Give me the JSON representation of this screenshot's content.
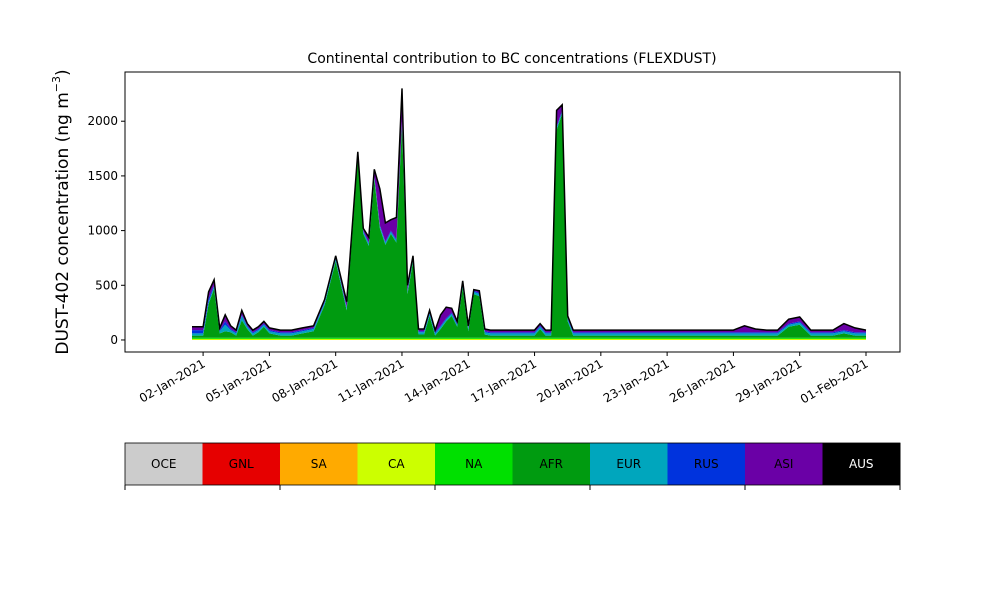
{
  "chart_data": {
    "type": "area",
    "title": "Continental contribution to BC concentrations (FLEXDUST)",
    "ylabel_main": "DUST-402 concentration (ng m",
    "ylabel_sup": "−3",
    "ylabel_close": ")",
    "xlabel": "",
    "x_range": [
      "2021-01-01",
      "2021-02-01"
    ],
    "ylim": [
      -110,
      2450
    ],
    "y_ticks": [
      0,
      500,
      1000,
      1500,
      2000
    ],
    "x_ticks": [
      {
        "date": "2021-01-02",
        "label": "02-Jan-2021"
      },
      {
        "date": "2021-01-05",
        "label": "05-Jan-2021"
      },
      {
        "date": "2021-01-08",
        "label": "08-Jan-2021"
      },
      {
        "date": "2021-01-11",
        "label": "11-Jan-2021"
      },
      {
        "date": "2021-01-14",
        "label": "14-Jan-2021"
      },
      {
        "date": "2021-01-17",
        "label": "17-Jan-2021"
      },
      {
        "date": "2021-01-20",
        "label": "20-Jan-2021"
      },
      {
        "date": "2021-01-23",
        "label": "23-Jan-2021"
      },
      {
        "date": "2021-01-26",
        "label": "26-Jan-2021"
      },
      {
        "date": "2021-01-29",
        "label": "29-Jan-2021"
      },
      {
        "date": "2021-02-01",
        "label": "01-Feb-2021"
      }
    ],
    "stack_order": [
      "OCE",
      "GNL",
      "SA",
      "CA",
      "NA",
      "AFR",
      "EUR",
      "RUS",
      "ASI",
      "AUS"
    ],
    "colors": {
      "OCE": "#cccccc",
      "GNL": "#e60000",
      "SA": "#ffaa00",
      "CA": "#ccff00",
      "NA": "#00e000",
      "AFR": "#009b10",
      "EUR": "#00a6bd",
      "RUS": "#0033dd",
      "ASI": "#6a00a6",
      "AUS": "#000000"
    },
    "x": [
      "2021-01-01 12:00",
      "2021-01-02 00:00",
      "2021-01-02 06:00",
      "2021-01-02 12:00",
      "2021-01-02 18:00",
      "2021-01-03 00:00",
      "2021-01-03 06:00",
      "2021-01-03 12:00",
      "2021-01-03 18:00",
      "2021-01-04 00:00",
      "2021-01-04 06:00",
      "2021-01-04 12:00",
      "2021-01-04 18:00",
      "2021-01-05 00:00",
      "2021-01-05 12:00",
      "2021-01-06 00:00",
      "2021-01-06 12:00",
      "2021-01-07 00:00",
      "2021-01-07 12:00",
      "2021-01-08 00:00",
      "2021-01-08 12:00",
      "2021-01-09 00:00",
      "2021-01-09 06:00",
      "2021-01-09 12:00",
      "2021-01-09 18:00",
      "2021-01-10 00:00",
      "2021-01-10 06:00",
      "2021-01-10 12:00",
      "2021-01-10 18:00",
      "2021-01-11 00:00",
      "2021-01-11 06:00",
      "2021-01-11 12:00",
      "2021-01-11 18:00",
      "2021-01-12 00:00",
      "2021-01-12 06:00",
      "2021-01-12 12:00",
      "2021-01-12 18:00",
      "2021-01-13 00:00",
      "2021-01-13 06:00",
      "2021-01-13 12:00",
      "2021-01-13 18:00",
      "2021-01-14 00:00",
      "2021-01-14 06:00",
      "2021-01-14 12:00",
      "2021-01-14 18:00",
      "2021-01-15 00:00",
      "2021-01-15 12:00",
      "2021-01-16 00:00",
      "2021-01-16 12:00",
      "2021-01-17 00:00",
      "2021-01-17 06:00",
      "2021-01-17 12:00",
      "2021-01-17 18:00",
      "2021-01-18 00:00",
      "2021-01-18 06:00",
      "2021-01-18 12:00",
      "2021-01-18 18:00",
      "2021-01-19 00:00",
      "2021-01-19 12:00",
      "2021-01-20 00:00",
      "2021-01-20 12:00",
      "2021-01-21 00:00",
      "2021-01-21 12:00",
      "2021-01-22 00:00",
      "2021-01-22 06:00",
      "2021-01-22 12:00",
      "2021-01-22 18:00",
      "2021-01-23 00:00",
      "2021-01-23 06:00",
      "2021-01-23 12:00",
      "2021-01-24 00:00",
      "2021-01-24 06:00",
      "2021-01-24 12:00",
      "2021-01-24 18:00",
      "2021-01-25 00:00",
      "2021-01-25 12:00",
      "2021-01-26 00:00",
      "2021-01-26 12:00",
      "2021-01-27 00:00",
      "2021-01-27 12:00",
      "2021-01-28 00:00",
      "2021-01-28 12:00",
      "2021-01-29 00:00",
      "2021-01-29 12:00",
      "2021-01-30 00:00",
      "2021-01-30 12:00",
      "2021-01-31 00:00",
      "2021-01-31 12:00",
      "2021-02-01 00:00"
    ],
    "series": [
      {
        "name": "OCE",
        "values": [
          0,
          0,
          0,
          0,
          0,
          0,
          0,
          0,
          0,
          0,
          0,
          0,
          0,
          0,
          0,
          0,
          0,
          0,
          0,
          0,
          0,
          0,
          0,
          0,
          0,
          0,
          0,
          0,
          0,
          0,
          0,
          0,
          0,
          0,
          0,
          0,
          0,
          0,
          0,
          0,
          0,
          0,
          0,
          0,
          0,
          0,
          0,
          0,
          0,
          0,
          0,
          0,
          0,
          0,
          0,
          0,
          0,
          0,
          0,
          0,
          0,
          0,
          0,
          0,
          0,
          0,
          0,
          0,
          0,
          0,
          0,
          0,
          0,
          0,
          0,
          0,
          0,
          0,
          0,
          0,
          0,
          0,
          0,
          0,
          0,
          0,
          0,
          0,
          0
        ]
      },
      {
        "name": "GNL",
        "values": [
          0,
          0,
          0,
          0,
          0,
          0,
          0,
          0,
          0,
          0,
          0,
          0,
          0,
          0,
          0,
          0,
          0,
          0,
          0,
          0,
          0,
          0,
          0,
          0,
          0,
          0,
          0,
          0,
          0,
          0,
          0,
          0,
          0,
          0,
          0,
          0,
          0,
          0,
          0,
          0,
          0,
          0,
          0,
          0,
          0,
          0,
          0,
          0,
          0,
          0,
          0,
          0,
          0,
          0,
          0,
          0,
          0,
          0,
          0,
          0,
          0,
          0,
          0,
          0,
          0,
          0,
          0,
          0,
          0,
          0,
          0,
          0,
          0,
          0,
          0,
          0,
          0,
          0,
          0,
          0,
          0,
          0,
          0,
          0,
          0,
          0,
          0,
          0,
          0
        ]
      },
      {
        "name": "SA",
        "values": [
          0,
          0,
          0,
          0,
          0,
          0,
          0,
          0,
          0,
          0,
          0,
          0,
          0,
          0,
          0,
          0,
          0,
          0,
          0,
          0,
          0,
          0,
          0,
          0,
          0,
          0,
          0,
          0,
          0,
          0,
          0,
          0,
          0,
          0,
          0,
          0,
          0,
          0,
          0,
          0,
          0,
          0,
          0,
          0,
          0,
          0,
          0,
          0,
          0,
          0,
          0,
          0,
          0,
          0,
          0,
          0,
          0,
          0,
          0,
          0,
          0,
          0,
          0,
          0,
          0,
          0,
          0,
          0,
          0,
          0,
          0,
          0,
          0,
          0,
          0,
          0,
          0,
          0,
          0,
          0,
          0,
          0,
          0,
          0,
          0,
          0,
          0,
          0,
          0
        ]
      },
      {
        "name": "CA",
        "values": [
          10,
          10,
          10,
          10,
          10,
          10,
          10,
          10,
          10,
          10,
          10,
          10,
          10,
          10,
          10,
          10,
          10,
          10,
          10,
          10,
          10,
          10,
          10,
          10,
          10,
          10,
          10,
          10,
          10,
          10,
          10,
          10,
          10,
          10,
          10,
          10,
          10,
          10,
          10,
          10,
          10,
          10,
          10,
          10,
          10,
          10,
          10,
          10,
          10,
          10,
          10,
          10,
          10,
          10,
          10,
          10,
          10,
          10,
          10,
          10,
          10,
          10,
          10,
          10,
          10,
          10,
          10,
          10,
          10,
          10,
          10,
          10,
          10,
          10,
          10,
          10,
          10,
          10,
          10,
          10,
          10,
          10,
          10,
          10,
          10,
          10,
          10,
          10,
          10
        ]
      },
      {
        "name": "NA",
        "values": [
          10,
          10,
          10,
          10,
          10,
          10,
          10,
          10,
          10,
          10,
          10,
          10,
          10,
          10,
          10,
          10,
          10,
          10,
          10,
          10,
          10,
          10,
          10,
          10,
          10,
          10,
          10,
          10,
          10,
          10,
          10,
          10,
          10,
          10,
          10,
          10,
          10,
          10,
          10,
          10,
          10,
          10,
          10,
          10,
          10,
          10,
          10,
          10,
          10,
          10,
          10,
          10,
          10,
          10,
          10,
          10,
          10,
          10,
          10,
          10,
          10,
          10,
          10,
          10,
          10,
          10,
          10,
          10,
          10,
          10,
          10,
          10,
          10,
          10,
          10,
          10,
          10,
          10,
          10,
          10,
          10,
          10,
          10,
          10,
          10,
          10,
          10,
          10,
          10
        ]
      },
      {
        "name": "AFR",
        "values": [
          20,
          20,
          310,
          450,
          40,
          60,
          50,
          20,
          160,
          80,
          20,
          50,
          100,
          40,
          20,
          20,
          40,
          60,
          300,
          700,
          250,
          1650,
          950,
          840,
          1450,
          1000,
          850,
          950,
          870,
          1950,
          400,
          700,
          30,
          30,
          200,
          20,
          80,
          150,
          200,
          100,
          460,
          60,
          400,
          380,
          30,
          20,
          20,
          20,
          20,
          20,
          80,
          20,
          20,
          1900,
          2050,
          150,
          20,
          20,
          20,
          20,
          20,
          20,
          20,
          20,
          20,
          20,
          20,
          20,
          20,
          20,
          20,
          20,
          20,
          20,
          20,
          20,
          20,
          20,
          20,
          20,
          20,
          100,
          120,
          20,
          20,
          20,
          40,
          20,
          20
        ]
      },
      {
        "name": "EUR",
        "values": [
          20,
          20,
          20,
          20,
          20,
          60,
          20,
          20,
          40,
          20,
          20,
          20,
          20,
          20,
          20,
          20,
          20,
          20,
          20,
          20,
          20,
          20,
          20,
          20,
          20,
          20,
          20,
          20,
          20,
          20,
          20,
          20,
          20,
          20,
          20,
          20,
          20,
          20,
          20,
          20,
          20,
          20,
          20,
          20,
          20,
          20,
          20,
          20,
          20,
          20,
          20,
          20,
          20,
          20,
          20,
          20,
          20,
          20,
          20,
          20,
          20,
          20,
          20,
          20,
          20,
          20,
          20,
          20,
          20,
          20,
          20,
          20,
          20,
          20,
          20,
          20,
          20,
          20,
          20,
          20,
          20,
          20,
          20,
          20,
          20,
          20,
          20,
          20,
          20
        ]
      },
      {
        "name": "RUS",
        "values": [
          30,
          30,
          30,
          10,
          10,
          30,
          10,
          10,
          10,
          10,
          10,
          10,
          10,
          10,
          10,
          10,
          10,
          10,
          10,
          10,
          10,
          10,
          10,
          10,
          10,
          10,
          10,
          10,
          10,
          10,
          10,
          10,
          10,
          10,
          10,
          10,
          10,
          10,
          10,
          10,
          10,
          10,
          10,
          10,
          10,
          10,
          10,
          10,
          10,
          10,
          10,
          10,
          10,
          10,
          10,
          10,
          10,
          10,
          10,
          10,
          10,
          10,
          10,
          10,
          10,
          10,
          10,
          10,
          10,
          10,
          10,
          10,
          10,
          10,
          10,
          10,
          10,
          10,
          10,
          10,
          10,
          10,
          10,
          10,
          10,
          10,
          10,
          10,
          10
        ]
      },
      {
        "name": "ASI",
        "values": [
          30,
          30,
          60,
          50,
          20,
          60,
          30,
          20,
          40,
          20,
          20,
          20,
          20,
          20,
          20,
          20,
          20,
          20,
          20,
          20,
          50,
          20,
          20,
          50,
          60,
          330,
          170,
          100,
          200,
          300,
          50,
          20,
          20,
          20,
          20,
          20,
          100,
          100,
          40,
          20,
          30,
          20,
          10,
          20,
          20,
          20,
          20,
          20,
          20,
          20,
          20,
          20,
          20,
          150,
          50,
          20,
          20,
          20,
          20,
          20,
          20,
          20,
          20,
          20,
          20,
          20,
          20,
          20,
          20,
          20,
          20,
          20,
          20,
          20,
          20,
          20,
          20,
          60,
          30,
          20,
          20,
          40,
          40,
          20,
          20,
          20,
          60,
          40,
          20
        ]
      },
      {
        "name": "AUS",
        "values": [
          0,
          0,
          0,
          0,
          0,
          0,
          0,
          0,
          0,
          0,
          0,
          0,
          0,
          0,
          0,
          0,
          0,
          0,
          0,
          0,
          0,
          0,
          0,
          0,
          0,
          0,
          0,
          0,
          0,
          0,
          0,
          0,
          0,
          0,
          0,
          0,
          0,
          0,
          0,
          0,
          0,
          0,
          0,
          0,
          0,
          0,
          0,
          0,
          0,
          0,
          0,
          0,
          0,
          0,
          0,
          0,
          0,
          0,
          0,
          0,
          0,
          0,
          0,
          0,
          0,
          0,
          0,
          0,
          0,
          0,
          0,
          0,
          0,
          0,
          0,
          0,
          0,
          0,
          0,
          0,
          0,
          0,
          0,
          0,
          0,
          0,
          0,
          0,
          0
        ]
      }
    ],
    "legend": {
      "labels": [
        "OCE",
        "GNL",
        "SA",
        "CA",
        "NA",
        "AFR",
        "EUR",
        "RUS",
        "ASI",
        "AUS"
      ],
      "placement": "bottom colorbar"
    }
  }
}
